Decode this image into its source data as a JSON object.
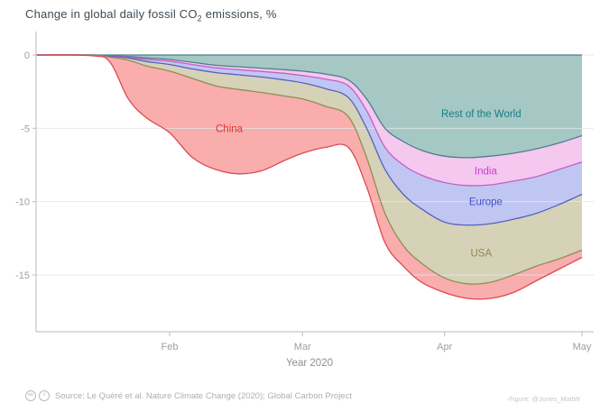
{
  "title": {
    "prefix": "Change in global daily fossil CO",
    "sub": "2",
    "suffix": " emissions, %"
  },
  "chart_data": {
    "type": "area",
    "stacked": true,
    "title": "Change in global daily fossil CO₂ emissions, %",
    "xlabel": "Year 2020",
    "ylabel": "",
    "x_unit": "day-of-year 2020 (Jan 1 = 0)",
    "ylim": [
      -19,
      0.5
    ],
    "grid": "horizontal",
    "legend_position": "labels-inside-areas",
    "x": [
      2,
      14,
      18,
      22,
      26,
      31,
      36,
      41,
      46,
      51,
      56,
      60,
      65,
      70,
      74,
      78,
      82,
      86,
      91,
      96,
      101,
      106,
      111,
      116,
      121
    ],
    "series": [
      {
        "name": "Rest of the World",
        "fill": "#a6c8c5",
        "stroke": "#4e7f8b",
        "label_color": "#157d86",
        "values": [
          0,
          0,
          -0.05,
          -0.1,
          -0.2,
          -0.3,
          -0.5,
          -0.7,
          -0.8,
          -0.9,
          -1.0,
          -1.1,
          -1.3,
          -1.7,
          -3.0,
          -5.0,
          -5.9,
          -6.5,
          -6.9,
          -7.0,
          -6.9,
          -6.7,
          -6.4,
          -6.0,
          -5.5
        ]
      },
      {
        "name": "India",
        "fill": "#f5c8f0",
        "stroke": "#c65fc4",
        "label_color": "#cb3ccb",
        "values": [
          0,
          0,
          -0.03,
          -0.05,
          -0.1,
          -0.12,
          -0.15,
          -0.17,
          -0.2,
          -0.22,
          -0.25,
          -0.3,
          -0.35,
          -0.4,
          -0.8,
          -1.3,
          -1.6,
          -1.7,
          -1.8,
          -1.9,
          -1.95,
          -1.9,
          -1.9,
          -1.8,
          -1.8
        ]
      },
      {
        "name": "Europe",
        "fill": "#c0c6f2",
        "stroke": "#5661c1",
        "label_color": "#4150ce",
        "values": [
          0,
          0,
          -0.02,
          -0.05,
          -0.15,
          -0.23,
          -0.3,
          -0.33,
          -0.35,
          -0.38,
          -0.45,
          -0.5,
          -0.65,
          -0.8,
          -1.2,
          -1.5,
          -2.0,
          -2.3,
          -2.7,
          -2.7,
          -2.65,
          -2.6,
          -2.5,
          -2.4,
          -2.2
        ]
      },
      {
        "name": "USA",
        "fill": "#d6d2b8",
        "stroke": "#8e8e55",
        "label_color": "#8b8b4e",
        "values": [
          0,
          0,
          -0.05,
          -0.15,
          -0.3,
          -0.45,
          -0.65,
          -0.9,
          -1.0,
          -1.05,
          -1.1,
          -1.1,
          -1.2,
          -1.3,
          -2.0,
          -3.0,
          -3.5,
          -3.7,
          -3.8,
          -4.0,
          -4.0,
          -3.8,
          -3.6,
          -3.7,
          -3.8
        ]
      },
      {
        "name": "China",
        "fill": "#f9adad",
        "stroke": "#dd4a52",
        "label_color": "#e03131",
        "values": [
          0,
          -0.05,
          -0.35,
          -2.65,
          -3.55,
          -4.2,
          -5.4,
          -5.7,
          -5.75,
          -5.35,
          -4.4,
          -3.7,
          -2.8,
          -2.1,
          -2.0,
          -2.0,
          -1.4,
          -1.3,
          -1.0,
          -1.0,
          -1.1,
          -1.2,
          -1.0,
          -0.7,
          -0.5
        ]
      }
    ],
    "y_ticks": [
      {
        "label": "0",
        "value": 0
      },
      {
        "label": "-5",
        "value": -5
      },
      {
        "label": "-10",
        "value": -10
      },
      {
        "label": "-15",
        "value": -15
      }
    ],
    "x_ticks": [
      {
        "label": "Feb",
        "day": 31
      },
      {
        "label": "Mar",
        "day": 60
      },
      {
        "label": "Apr",
        "day": 91
      },
      {
        "label": "May",
        "day": 121
      }
    ],
    "annotations": [
      {
        "text": "China",
        "day": 44,
        "value": -5.0,
        "color": "#e03131"
      },
      {
        "text": "Rest of the World",
        "day": 99,
        "value": -4.0,
        "color": "#157d86"
      },
      {
        "text": "India",
        "day": 100,
        "value": -7.9,
        "color": "#cb3ccb"
      },
      {
        "text": "Europe",
        "day": 100,
        "value": -10.0,
        "color": "#4150ce"
      },
      {
        "text": "USA",
        "day": 99,
        "value": -13.5,
        "color": "#8b8b4e"
      }
    ]
  },
  "footer": {
    "license_icons": [
      "cc",
      "i"
    ],
    "source": "Source: Le Quéré et al. Nature Climate Change (2020); Global Carbon Project",
    "credit": "-Figure: @Jones_MattW"
  },
  "axis_style": {
    "axis_color": "#c3c7c9",
    "grid_color": "#e6e6e6",
    "tick_label_color": "#9aa0a4",
    "xlabel_color": "#8f8f8f"
  }
}
